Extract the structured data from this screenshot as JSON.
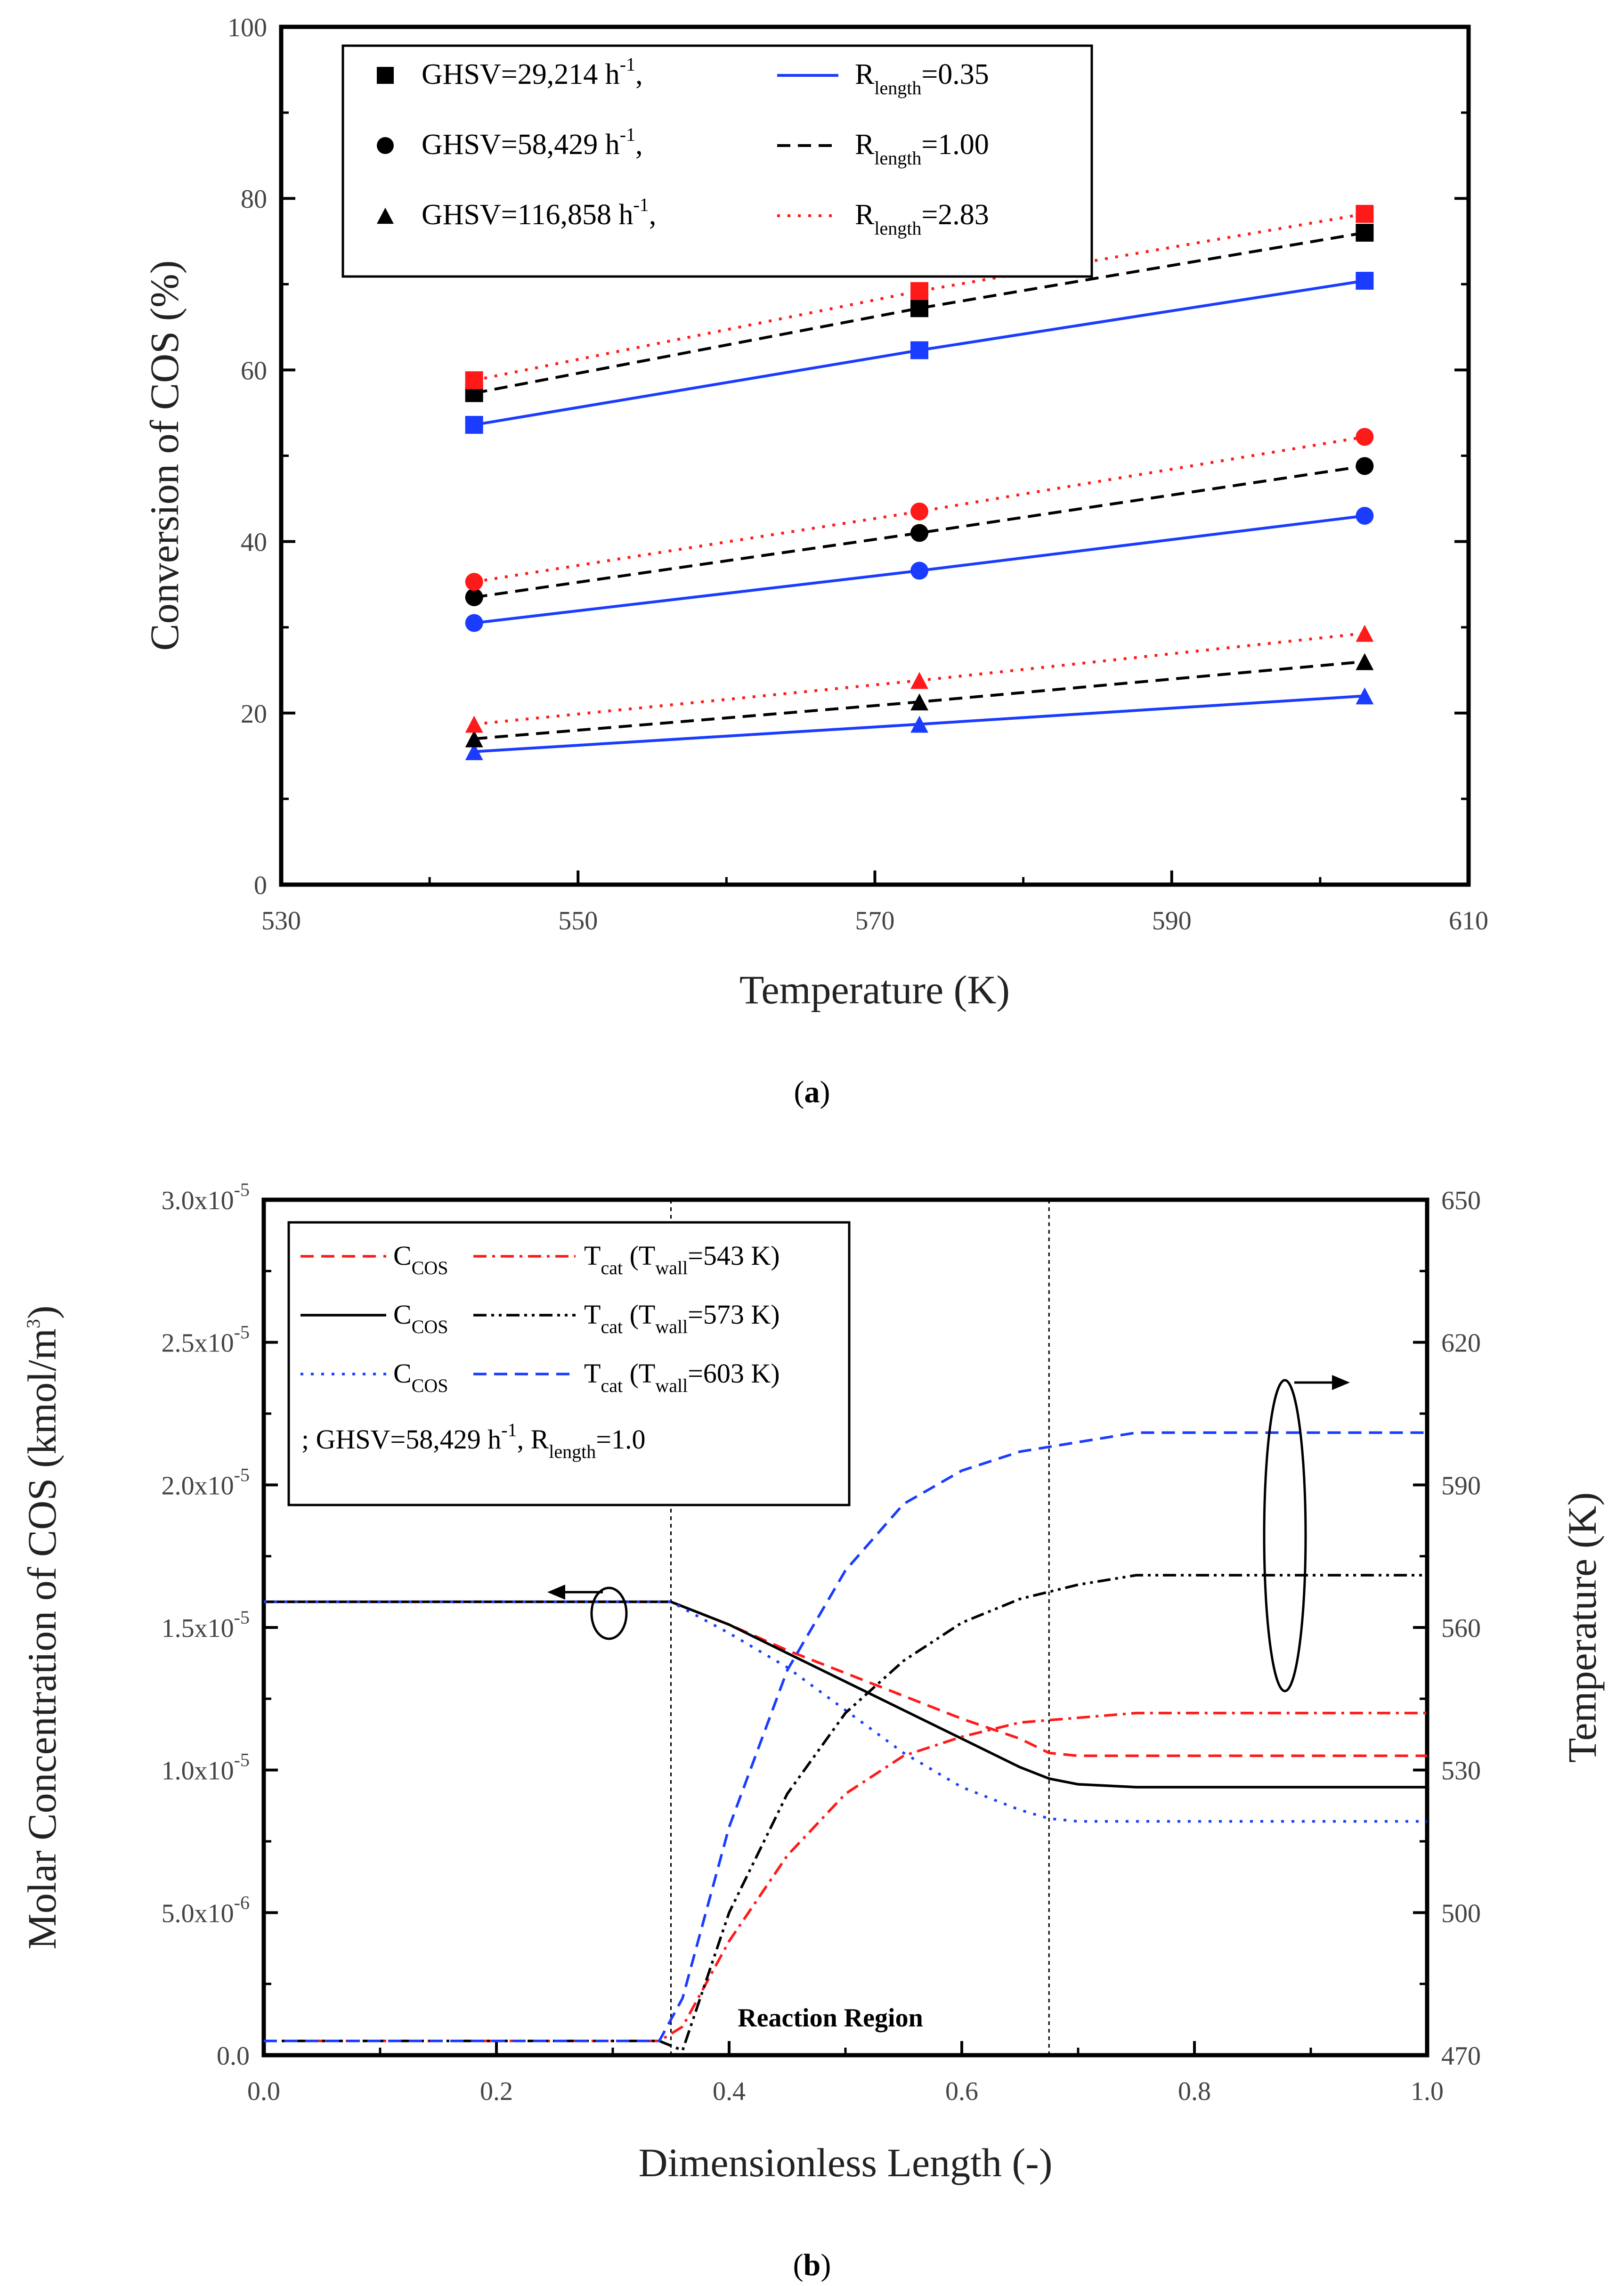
{
  "chart_data": [
    {
      "type": "line",
      "panel": "a",
      "caption": "a",
      "xlabel": "Temperature (K)",
      "ylabel": "Conversion of COS (%)",
      "xlim": [
        530,
        610
      ],
      "ylim": [
        0,
        100
      ],
      "xticks": [
        "530",
        "550",
        "570",
        "590",
        "610"
      ],
      "yticks": [
        "0",
        "20",
        "40",
        "60",
        "80",
        "100"
      ],
      "x": [
        543,
        573,
        603
      ],
      "legend": [
        {
          "marker": "square",
          "ghsv_text": "GHSV=29,214 h",
          "sup": "-1",
          "suffix": ",",
          "line": "solid",
          "r_text": "R",
          "r_sub": "length",
          "r_val": "=0.35"
        },
        {
          "marker": "circle",
          "ghsv_text": "GHSV=58,429 h",
          "sup": "-1",
          "suffix": ",",
          "line": "dashed",
          "r_text": "R",
          "r_sub": "length",
          "r_val": "=1.00"
        },
        {
          "marker": "triangle",
          "ghsv_text": "GHSV=116,858 h",
          "sup": "-1",
          "suffix": ",",
          "line": "dotted",
          "r_text": "R",
          "r_sub": "length",
          "r_val": "=2.83"
        }
      ],
      "series": [
        {
          "name": "GHSV=29,214, R=0.35",
          "marker": "square",
          "color": "#1a3cff",
          "dash": "solid",
          "values": [
            53.6,
            62.3,
            70.4
          ]
        },
        {
          "name": "GHSV=29,214, R=1.00",
          "marker": "square",
          "color": "#000000",
          "dash": "dashed",
          "values": [
            57.3,
            67.2,
            76.0
          ]
        },
        {
          "name": "GHSV=29,214, R=2.83",
          "marker": "square",
          "color": "#ff1a1a",
          "dash": "dotted",
          "values": [
            58.8,
            69.2,
            78.2
          ]
        },
        {
          "name": "GHSV=58,429, R=0.35",
          "marker": "circle",
          "color": "#1a3cff",
          "dash": "solid",
          "values": [
            30.5,
            36.6,
            43.0
          ]
        },
        {
          "name": "GHSV=58,429, R=1.00",
          "marker": "circle",
          "color": "#000000",
          "dash": "dashed",
          "values": [
            33.5,
            41.0,
            48.8
          ]
        },
        {
          "name": "GHSV=58,429, R=2.83",
          "marker": "circle",
          "color": "#ff1a1a",
          "dash": "dotted",
          "values": [
            35.3,
            43.5,
            52.2
          ]
        },
        {
          "name": "GHSV=116,858, R=0.35",
          "marker": "triangle",
          "color": "#1a3cff",
          "dash": "solid",
          "values": [
            15.5,
            18.7,
            22.0
          ]
        },
        {
          "name": "GHSV=116,858, R=1.00",
          "marker": "triangle",
          "color": "#000000",
          "dash": "dashed",
          "values": [
            17.0,
            21.3,
            26.0
          ]
        },
        {
          "name": "GHSV=116,858, R=2.83",
          "marker": "triangle",
          "color": "#ff1a1a",
          "dash": "dotted",
          "values": [
            18.7,
            23.8,
            29.3
          ]
        }
      ]
    },
    {
      "type": "line",
      "panel": "b",
      "caption": "b",
      "xlabel": "Dimensionless Length (-)",
      "ylabel": "Molar Concentration of COS (kmol/m",
      "ylabel_sup": "3",
      "ylabel_end": ")",
      "y2label": "Temperature (K)",
      "xlim": [
        0.0,
        1.0
      ],
      "ylim": [
        0,
        3e-05
      ],
      "y2lim": [
        470,
        650
      ],
      "xticks": [
        "0.0",
        "0.2",
        "0.4",
        "0.6",
        "0.8",
        "1.0"
      ],
      "yticks": [
        {
          "m": "0.0",
          "e": ""
        },
        {
          "m": "5.0x10",
          "e": "-6"
        },
        {
          "m": "1.0x10",
          "e": "-5"
        },
        {
          "m": "1.5x10",
          "e": "-5"
        },
        {
          "m": "2.0x10",
          "e": "-5"
        },
        {
          "m": "2.5x10",
          "e": "-5"
        },
        {
          "m": "3.0x10",
          "e": "-5"
        }
      ],
      "y2ticks": [
        "470",
        "500",
        "530",
        "560",
        "590",
        "620",
        "650"
      ],
      "annotation": "Reaction Region",
      "region_bounds": [
        0.35,
        0.675
      ],
      "legend": [
        {
          "c_text": "C",
          "c_sub": "COS",
          "t_text": "T",
          "t_sub": "cat",
          "t_paren": " (T",
          "t_sub2": "wall",
          "t_end": "=543 K)",
          "color": "#ff1a1a"
        },
        {
          "c_text": "C",
          "c_sub": "COS",
          "t_text": "T",
          "t_sub": "cat",
          "t_paren": " (T",
          "t_sub2": "wall",
          "t_end": "=573 K)",
          "color": "#000000"
        },
        {
          "c_text": "C",
          "c_sub": "COS",
          "t_text": "T",
          "t_sub": "cat",
          "t_paren": " (T",
          "t_sub2": "wall",
          "t_end": "=603 K)",
          "color": "#1a3cff"
        }
      ],
      "legend_note": {
        "pre": "; GHSV=58,429 h",
        "sup": "-1",
        "mid": ", R",
        "sub": "length",
        "end": "=1.0"
      },
      "series": [
        {
          "name": "C_COS (T_wall=543 K)",
          "axis": "left",
          "color": "#ff1a1a",
          "dash": "dashed",
          "x": [
            0,
            0.35,
            0.4,
            0.45,
            0.5,
            0.55,
            0.6,
            0.65,
            0.675,
            0.7,
            1.0
          ],
          "y": [
            1.59e-05,
            1.59e-05,
            1.51e-05,
            1.42e-05,
            1.34e-05,
            1.26e-05,
            1.18e-05,
            1.11e-05,
            1.06e-05,
            1.05e-05,
            1.05e-05
          ]
        },
        {
          "name": "C_COS (T_wall=573 K)",
          "axis": "left",
          "color": "#000000",
          "dash": "solid",
          "x": [
            0,
            0.35,
            0.4,
            0.45,
            0.5,
            0.55,
            0.6,
            0.65,
            0.675,
            0.7,
            0.75,
            1.0
          ],
          "y": [
            1.59e-05,
            1.59e-05,
            1.51e-05,
            1.41e-05,
            1.31e-05,
            1.21e-05,
            1.11e-05,
            1.01e-05,
            9.7e-06,
            9.5e-06,
            9.4e-06,
            9.4e-06
          ]
        },
        {
          "name": "C_COS (T_wall=603 K)",
          "axis": "left",
          "color": "#1a3cff",
          "dash": "dotted",
          "x": [
            0,
            0.35,
            0.4,
            0.45,
            0.5,
            0.55,
            0.6,
            0.65,
            0.675,
            0.7,
            1.0
          ],
          "y": [
            1.59e-05,
            1.59e-05,
            1.48e-05,
            1.36e-05,
            1.21e-05,
            1.06e-05,
            9.4e-06,
            8.6e-06,
            8.3e-06,
            8.2e-06,
            8.2e-06
          ]
        },
        {
          "name": "T_cat (T_wall=543 K)",
          "axis": "right",
          "color": "#ff1a1a",
          "dash": "dashdot",
          "x": [
            0,
            0.34,
            0.36,
            0.4,
            0.45,
            0.5,
            0.55,
            0.6,
            0.65,
            0.7,
            0.75,
            0.8,
            1.0
          ],
          "y": [
            473,
            473,
            476,
            494,
            512,
            525,
            533,
            537,
            540,
            541,
            542,
            542,
            542
          ]
        },
        {
          "name": "T_cat (T_wall=573 K)",
          "axis": "right",
          "color": "#000000",
          "dash": "dashdotdot",
          "x": [
            0,
            0.34,
            0.36,
            0.4,
            0.45,
            0.5,
            0.55,
            0.6,
            0.65,
            0.7,
            0.75,
            0.8,
            1.0
          ],
          "y": [
            473,
            473,
            471,
            500,
            525,
            542,
            553,
            561,
            566,
            569,
            571,
            571,
            571
          ]
        },
        {
          "name": "T_cat (T_wall=603 K)",
          "axis": "right",
          "color": "#1a3cff",
          "dash": "dashed",
          "x": [
            0,
            0.34,
            0.36,
            0.4,
            0.45,
            0.5,
            0.55,
            0.6,
            0.65,
            0.7,
            0.75,
            0.8,
            1.0
          ],
          "y": [
            473,
            473,
            482,
            518,
            551,
            572,
            586,
            593,
            597,
            599,
            601,
            601,
            601
          ]
        }
      ]
    }
  ]
}
